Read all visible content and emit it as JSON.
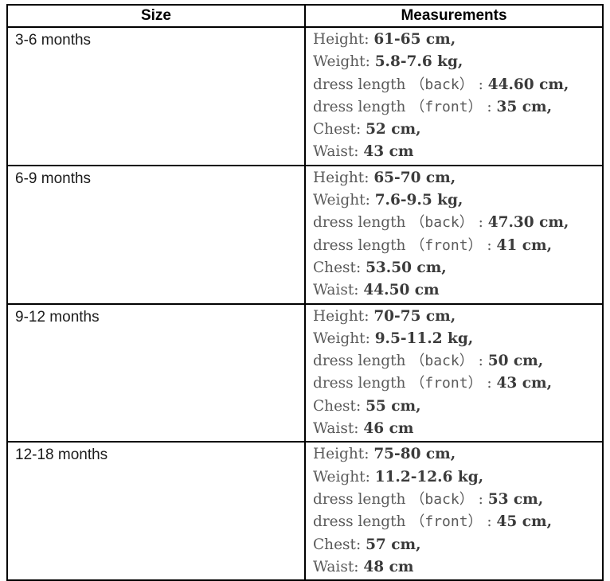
{
  "table": {
    "headers": {
      "size": "Size",
      "measurements": "Measurements"
    },
    "rows": [
      {
        "size": "3-6 months",
        "measurements": [
          {
            "label": "Height: ",
            "paren": "",
            "sep": "",
            "value": "61-65 cm,"
          },
          {
            "label": "Weight: ",
            "paren": "",
            "sep": "",
            "value": "5.8-7.6 kg,"
          },
          {
            "label": "dress length ",
            "paren": "（back）",
            "sep": " : ",
            "value": "44.60 cm,"
          },
          {
            "label": "dress length ",
            "paren": "（front）",
            "sep": " : ",
            "value": "35 cm,"
          },
          {
            "label": "Chest: ",
            "paren": "",
            "sep": "",
            "value": "52 cm,"
          },
          {
            "label": "Waist: ",
            "paren": "",
            "sep": "",
            "value": "43 cm"
          }
        ]
      },
      {
        "size": "6-9 months",
        "measurements": [
          {
            "label": "Height: ",
            "paren": "",
            "sep": "",
            "value": "65-70 cm,"
          },
          {
            "label": "Weight: ",
            "paren": "",
            "sep": "",
            "value": "7.6-9.5 kg,"
          },
          {
            "label": "dress length ",
            "paren": "（back）",
            "sep": " : ",
            "value": "47.30 cm,"
          },
          {
            "label": "dress length ",
            "paren": "（front）",
            "sep": " : ",
            "value": "41 cm,"
          },
          {
            "label": "Chest: ",
            "paren": "",
            "sep": "",
            "value": "53.50 cm,"
          },
          {
            "label": "Waist: ",
            "paren": "",
            "sep": "",
            "value": "44.50 cm"
          }
        ]
      },
      {
        "size": "9-12 months",
        "measurements": [
          {
            "label": "Height: ",
            "paren": "",
            "sep": "",
            "value": "70-75 cm,"
          },
          {
            "label": "Weight: ",
            "paren": "",
            "sep": "",
            "value": "9.5-11.2 kg,"
          },
          {
            "label": "dress length ",
            "paren": "（back）",
            "sep": " : ",
            "value": "50 cm,"
          },
          {
            "label": "dress length ",
            "paren": "（front）",
            "sep": " : ",
            "value": "43 cm,"
          },
          {
            "label": "Chest: ",
            "paren": "",
            "sep": "",
            "value": "55 cm,"
          },
          {
            "label": "Waist: ",
            "paren": "",
            "sep": "",
            "value": "46 cm"
          }
        ]
      },
      {
        "size": "12-18 months",
        "measurements": [
          {
            "label": "Height: ",
            "paren": "",
            "sep": "",
            "value": "75-80 cm,"
          },
          {
            "label": "Weight: ",
            "paren": "",
            "sep": "",
            "value": "11.2-12.6 kg,"
          },
          {
            "label": "dress length ",
            "paren": "（back）",
            "sep": " : ",
            "value": "53 cm,"
          },
          {
            "label": "dress length ",
            "paren": "（front）",
            "sep": " : ",
            "value": "45 cm,"
          },
          {
            "label": "Chest: ",
            "paren": "",
            "sep": "",
            "value": "57 cm,"
          },
          {
            "label": "Waist: ",
            "paren": "",
            "sep": "",
            "value": "48 cm"
          }
        ]
      }
    ],
    "colors": {
      "border": "#000000",
      "label_gray": "#5a5a5a",
      "value_dark": "#3b3b3b"
    }
  }
}
